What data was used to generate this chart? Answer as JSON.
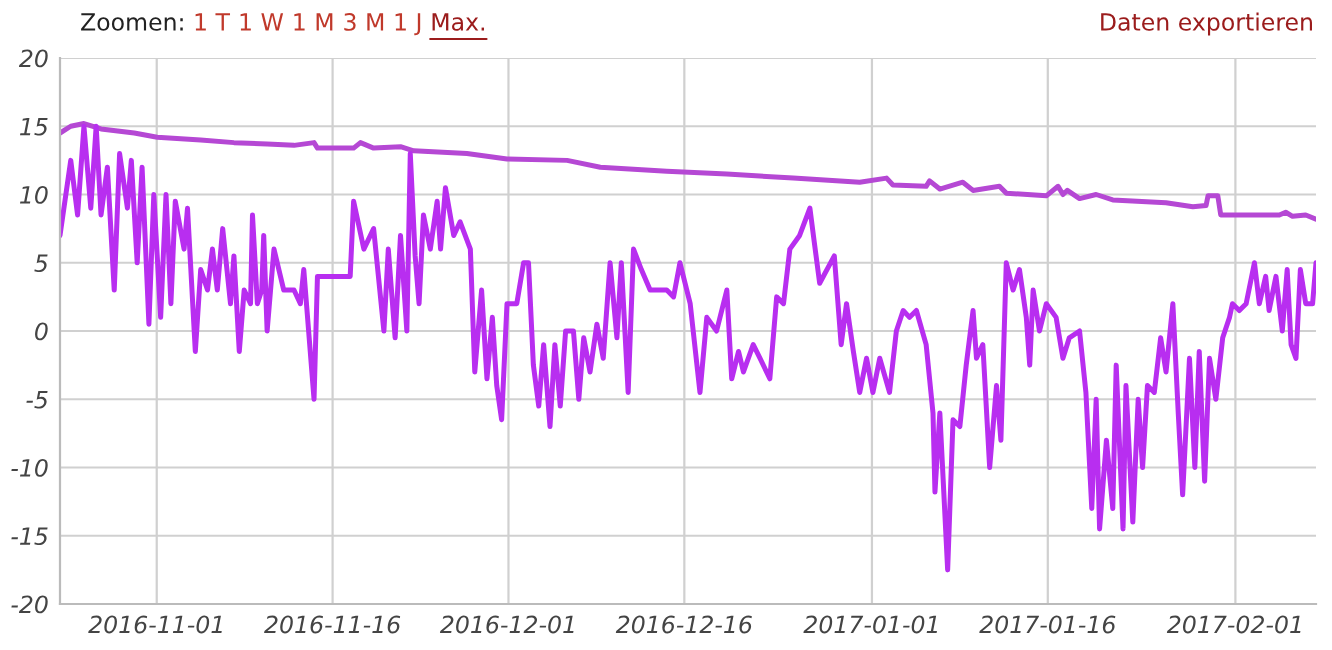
{
  "chart_data": {
    "type": "line",
    "annotations": [
      "Zoomen:",
      "1 T",
      "1 W",
      "1 M",
      "3 M",
      "1 J",
      "Max.",
      "Daten exportieren"
    ],
    "xlim": [
      "2016-10-23T18:00",
      "2017-02-07T21:00"
    ],
    "xticks": [
      "2016-11-01",
      "2016-11-16",
      "2016-12-01",
      "2016-12-16",
      "2017-01-01",
      "2017-01-16",
      "2017-02-01"
    ],
    "ylim": [
      -20,
      20
    ],
    "yticks": [
      -20,
      -15,
      -10,
      -5,
      0,
      5,
      10,
      15,
      20
    ],
    "grid": true,
    "legend": false,
    "marker": "none",
    "line_style": "solid",
    "series": [
      {
        "color": "#b548d4",
        "x": [
          "2016-10-23T18:00",
          "2016-10-24T16:00",
          "2016-10-25T19:00",
          "2016-10-27T06:00",
          "2016-10-30T02:00",
          "2016-11-01T01:00",
          "2016-11-04T18:00",
          "2016-11-07T14:00",
          "2016-11-10T10:00",
          "2016-11-12T17:00",
          "2016-11-14T10:00",
          "2016-11-14T17:00",
          "2016-11-17T19:00",
          "2016-11-18T09:00",
          "2016-11-19T12:00",
          "2016-11-21T19:00",
          "2016-11-22T22:00",
          "2016-11-27T11:00",
          "2016-11-30T21:00",
          "2016-12-06T00:00",
          "2016-12-08T20:00",
          "2016-12-14T12:00",
          "2016-12-19T15:00",
          "2016-12-25T07:00",
          "2016-12-30T23:00",
          "2017-01-02T06:00",
          "2017-01-02T19:00",
          "2017-01-05T15:00",
          "2017-01-05T22:00",
          "2017-01-06T19:00",
          "2017-01-08T18:00",
          "2017-01-09T15:00",
          "2017-01-11T21:00",
          "2017-01-12T11:00",
          "2017-01-15T21:00",
          "2017-01-16T21:00",
          "2017-01-17T07:00",
          "2017-01-17T16:00",
          "2017-01-18T17:00",
          "2017-01-20T03:00",
          "2017-01-21T13:00",
          "2017-01-26T02:00",
          "2017-01-28T09:00",
          "2017-01-29T12:00",
          "2017-01-29T16:00",
          "2017-01-30T12:00",
          "2017-01-30T18:00",
          "2017-02-04T18:00",
          "2017-02-05T07:00",
          "2017-02-05T21:00",
          "2017-02-07T00:00",
          "2017-02-07T21:00"
        ],
        "values": [
          14.5,
          15,
          15.2,
          14.8,
          14.5,
          14.2,
          14,
          13.8,
          13.7,
          13.6,
          13.8,
          13.4,
          13.4,
          13.8,
          13.4,
          13.5,
          13.2,
          13,
          12.6,
          12.5,
          12,
          11.7,
          11.5,
          11.2,
          10.9,
          11.2,
          10.7,
          10.6,
          11,
          10.4,
          10.9,
          10.3,
          10.6,
          10.1,
          9.9,
          10.6,
          10,
          10.3,
          9.7,
          10,
          9.6,
          9.4,
          9.1,
          9.2,
          9.9,
          9.9,
          8.5,
          8.5,
          8.7,
          8.4,
          8.5,
          8.2
        ]
      },
      {
        "color": "#b82ef0",
        "x": [
          "2016-10-23T18:00",
          "2016-10-24T16:00",
          "2016-10-25T06:00",
          "2016-10-25T19:00",
          "2016-10-26T09:00",
          "2016-10-26T20:00",
          "2016-10-27T06:00",
          "2016-10-27T19:00",
          "2016-10-28T09:00",
          "2016-10-28T20:00",
          "2016-10-29T12:00",
          "2016-10-29T20:00",
          "2016-10-30T08:00",
          "2016-10-30T18:00",
          "2016-10-31T08:00",
          "2016-10-31T18:00",
          "2016-11-01T08:00",
          "2016-11-01T19:00",
          "2016-11-02T05:00",
          "2016-11-02T14:00",
          "2016-11-03T08:00",
          "2016-11-03T15:00",
          "2016-11-04T07:00",
          "2016-11-04T18:00",
          "2016-11-05T08:00",
          "2016-11-05T18:00",
          "2016-11-06T04:00",
          "2016-11-06T15:00",
          "2016-11-07T07:00",
          "2016-11-07T14:00",
          "2016-11-08T01:00",
          "2016-11-08T11:00",
          "2016-11-09T00:00",
          "2016-11-09T04:00",
          "2016-11-09T14:00",
          "2016-11-09T23:00",
          "2016-11-10T03:00",
          "2016-11-10T10:00",
          "2016-11-11T00:00",
          "2016-11-11T20:00",
          "2016-11-12T17:00",
          "2016-11-13T06:00",
          "2016-11-13T13:00",
          "2016-11-14T10:00",
          "2016-11-14T17:00",
          "2016-11-17T12:00",
          "2016-11-17T19:00",
          "2016-11-18T16:00",
          "2016-11-19T12:00",
          "2016-11-20T09:00",
          "2016-11-20T18:00",
          "2016-11-21T08:00",
          "2016-11-21T19:00",
          "2016-11-22T08:00",
          "2016-11-22T15:00",
          "2016-11-23T01:00",
          "2016-11-23T09:00",
          "2016-11-23T18:00",
          "2016-11-24T08:00",
          "2016-11-24T22:00",
          "2016-11-25T05:00",
          "2016-11-25T15:00",
          "2016-11-26T08:00",
          "2016-11-26T21:00",
          "2016-11-27T18:00",
          "2016-11-28T03:00",
          "2016-11-28T17:00",
          "2016-11-29T04:00",
          "2016-11-29T15:00",
          "2016-11-30T00:00",
          "2016-11-30T10:00",
          "2016-11-30T21:00",
          "2016-12-01T17:00",
          "2016-12-02T07:00",
          "2016-12-02T17:00",
          "2016-12-03T03:00",
          "2016-12-03T14:00",
          "2016-12-04T00:00",
          "2016-12-04T13:00",
          "2016-12-04T23:00",
          "2016-12-05T10:00",
          "2016-12-05T21:00",
          "2016-12-06T13:00",
          "2016-12-07T00:00",
          "2016-12-07T10:00",
          "2016-12-07T23:00",
          "2016-12-08T13:00",
          "2016-12-09T02:00",
          "2016-12-09T16:00",
          "2016-12-10T06:00",
          "2016-12-10T15:00",
          "2016-12-11T05:00",
          "2016-12-11T16:00",
          "2016-12-12T08:00",
          "2016-12-13T02:00",
          "2016-12-14T12:00",
          "2016-12-15T02:00",
          "2016-12-15T15:00",
          "2016-12-16T12:00",
          "2016-12-17T08:00",
          "2016-12-17T22:00",
          "2016-12-18T18:00",
          "2016-12-19T15:00",
          "2016-12-20T01:00",
          "2016-12-20T15:00",
          "2016-12-21T01:00",
          "2016-12-21T21:00",
          "2016-12-22T11:00",
          "2016-12-23T07:00",
          "2016-12-23T21:00",
          "2016-12-24T11:00",
          "2016-12-25T00:00",
          "2016-12-25T20:00",
          "2016-12-26T17:00",
          "2016-12-27T02:00",
          "2016-12-27T13:00",
          "2016-12-28T19:00",
          "2016-12-29T09:00",
          "2016-12-29T20:00",
          "2016-12-30T10:00",
          "2016-12-30T23:00",
          "2016-12-31T13:00",
          "2017-01-01T02:00",
          "2017-01-01T16:00",
          "2017-01-02T12:00",
          "2017-01-03T02:00",
          "2017-01-03T16:00",
          "2017-01-04T05:00",
          "2017-01-04T19:00",
          "2017-01-05T15:00",
          "2017-01-06T05:00",
          "2017-01-06T09:00",
          "2017-01-06T19:00",
          "2017-01-07T11:00",
          "2017-01-07T22:00",
          "2017-01-08T12:00",
          "2017-01-09T01:00",
          "2017-01-09T15:00",
          "2017-01-09T22:00",
          "2017-01-10T11:00",
          "2017-01-11T01:00",
          "2017-01-11T15:00",
          "2017-01-12T00:00",
          "2017-01-12T11:00",
          "2017-01-13T01:00",
          "2017-01-13T14:00",
          "2017-01-14T04:00",
          "2017-01-14T11:00",
          "2017-01-14T18:00",
          "2017-01-15T07:00",
          "2017-01-15T21:00",
          "2017-01-16T17:00",
          "2017-01-17T07:00",
          "2017-01-17T20:00",
          "2017-01-18T17:00",
          "2017-01-19T06:00",
          "2017-01-19T18:00",
          "2017-01-20T03:00",
          "2017-01-20T10:00",
          "2017-01-21T00:00",
          "2017-01-21T13:00",
          "2017-01-21T20:00",
          "2017-01-22T10:00",
          "2017-01-22T16:00",
          "2017-01-23T06:00",
          "2017-01-23T17:00",
          "2017-01-24T02:00",
          "2017-01-24T12:00",
          "2017-01-25T02:00",
          "2017-01-25T15:00",
          "2017-01-26T02:00",
          "2017-01-26T16:00",
          "2017-01-27T03:00",
          "2017-01-27T12:00",
          "2017-01-28T02:00",
          "2017-01-28T13:00",
          "2017-01-28T22:00",
          "2017-01-29T09:00",
          "2017-01-29T19:00",
          "2017-01-30T08:00",
          "2017-01-30T22:00",
          "2017-01-31T12:00",
          "2017-01-31T18:00",
          "2017-02-01T08:00",
          "2017-02-01T22:00",
          "2017-02-02T15:00",
          "2017-02-03T01:00",
          "2017-02-03T14:00",
          "2017-02-03T21:00",
          "2017-02-04T11:00",
          "2017-02-05T00:00",
          "2017-02-05T10:00",
          "2017-02-05T18:00",
          "2017-02-06T04:00",
          "2017-02-06T13:00",
          "2017-02-07T00:00",
          "2017-02-07T14:00",
          "2017-02-07T21:00"
        ],
        "values": [
          7,
          12.5,
          8.5,
          15,
          9,
          15,
          8.5,
          12,
          3,
          13,
          9,
          12.5,
          5,
          12,
          0.5,
          10,
          1,
          10,
          2,
          9.5,
          6,
          9,
          -1.5,
          4.5,
          3,
          6,
          3,
          7.5,
          2,
          5.5,
          -1.5,
          3,
          2,
          8.5,
          2,
          3,
          7,
          0,
          6,
          3,
          3,
          2,
          4.5,
          -5,
          4,
          4,
          9.5,
          6,
          7.5,
          0,
          6,
          -0.5,
          7,
          0,
          13,
          5.5,
          2,
          8.5,
          6,
          9.5,
          6,
          10.5,
          7,
          8,
          6,
          -3,
          3,
          -3.5,
          1,
          -4,
          -6.5,
          2,
          2,
          5,
          5,
          -2.5,
          -5.5,
          -1,
          -7,
          -1,
          -5.5,
          0,
          0,
          -5,
          -0.5,
          -3,
          0.5,
          -2,
          5,
          -0.5,
          5,
          -4.5,
          6,
          4.5,
          3,
          3,
          2.5,
          5,
          2,
          -4.5,
          1,
          0,
          3,
          -3.5,
          -1.5,
          -3,
          -1,
          -2,
          -3.5,
          2.5,
          2,
          6,
          7,
          9,
          6.5,
          3.5,
          5.5,
          -1,
          2,
          -1.5,
          -4.5,
          -2,
          -4.5,
          -2,
          -4.5,
          0,
          1.5,
          1,
          1.5,
          -1,
          -6,
          -11.8,
          -6,
          -17.5,
          -6.5,
          -7,
          -2.5,
          1.5,
          -2,
          -1,
          -10,
          -4,
          -8,
          5,
          3,
          4.5,
          1,
          -2.5,
          3,
          0,
          2,
          1,
          -2,
          -0.5,
          0,
          -4.5,
          -13,
          -5,
          -14.5,
          -8,
          -13,
          -2.5,
          -14.5,
          -4,
          -14,
          -5,
          -10,
          -4,
          -4.5,
          -0.5,
          -3,
          2,
          -6,
          -12,
          -2,
          -10,
          -1.5,
          -11,
          -2,
          -5,
          -0.5,
          1,
          2,
          1.5,
          2,
          5,
          2,
          4,
          1.5,
          4,
          0,
          4.5,
          -1,
          -2,
          4.5,
          2,
          2,
          5
        ]
      }
    ]
  }
}
